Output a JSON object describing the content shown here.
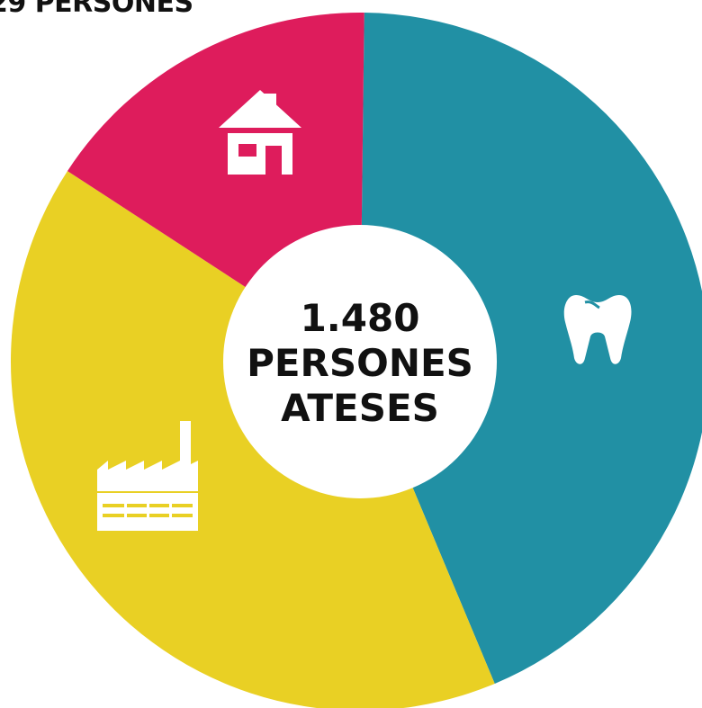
{
  "header": {
    "partial_label": "29 PERSONES"
  },
  "chart_data": {
    "type": "pie",
    "title": "",
    "center_label": [
      "1.480",
      "PERSONES",
      "ATESES"
    ],
    "slices": [
      {
        "icon": "tooth-icon",
        "value": 43.5,
        "color": "#2190A4"
      },
      {
        "icon": "factory-icon",
        "value": 40.5,
        "color": "#E9D024"
      },
      {
        "icon": "house-icon",
        "value": 16.0,
        "color": "#DE1C5C"
      }
    ]
  }
}
